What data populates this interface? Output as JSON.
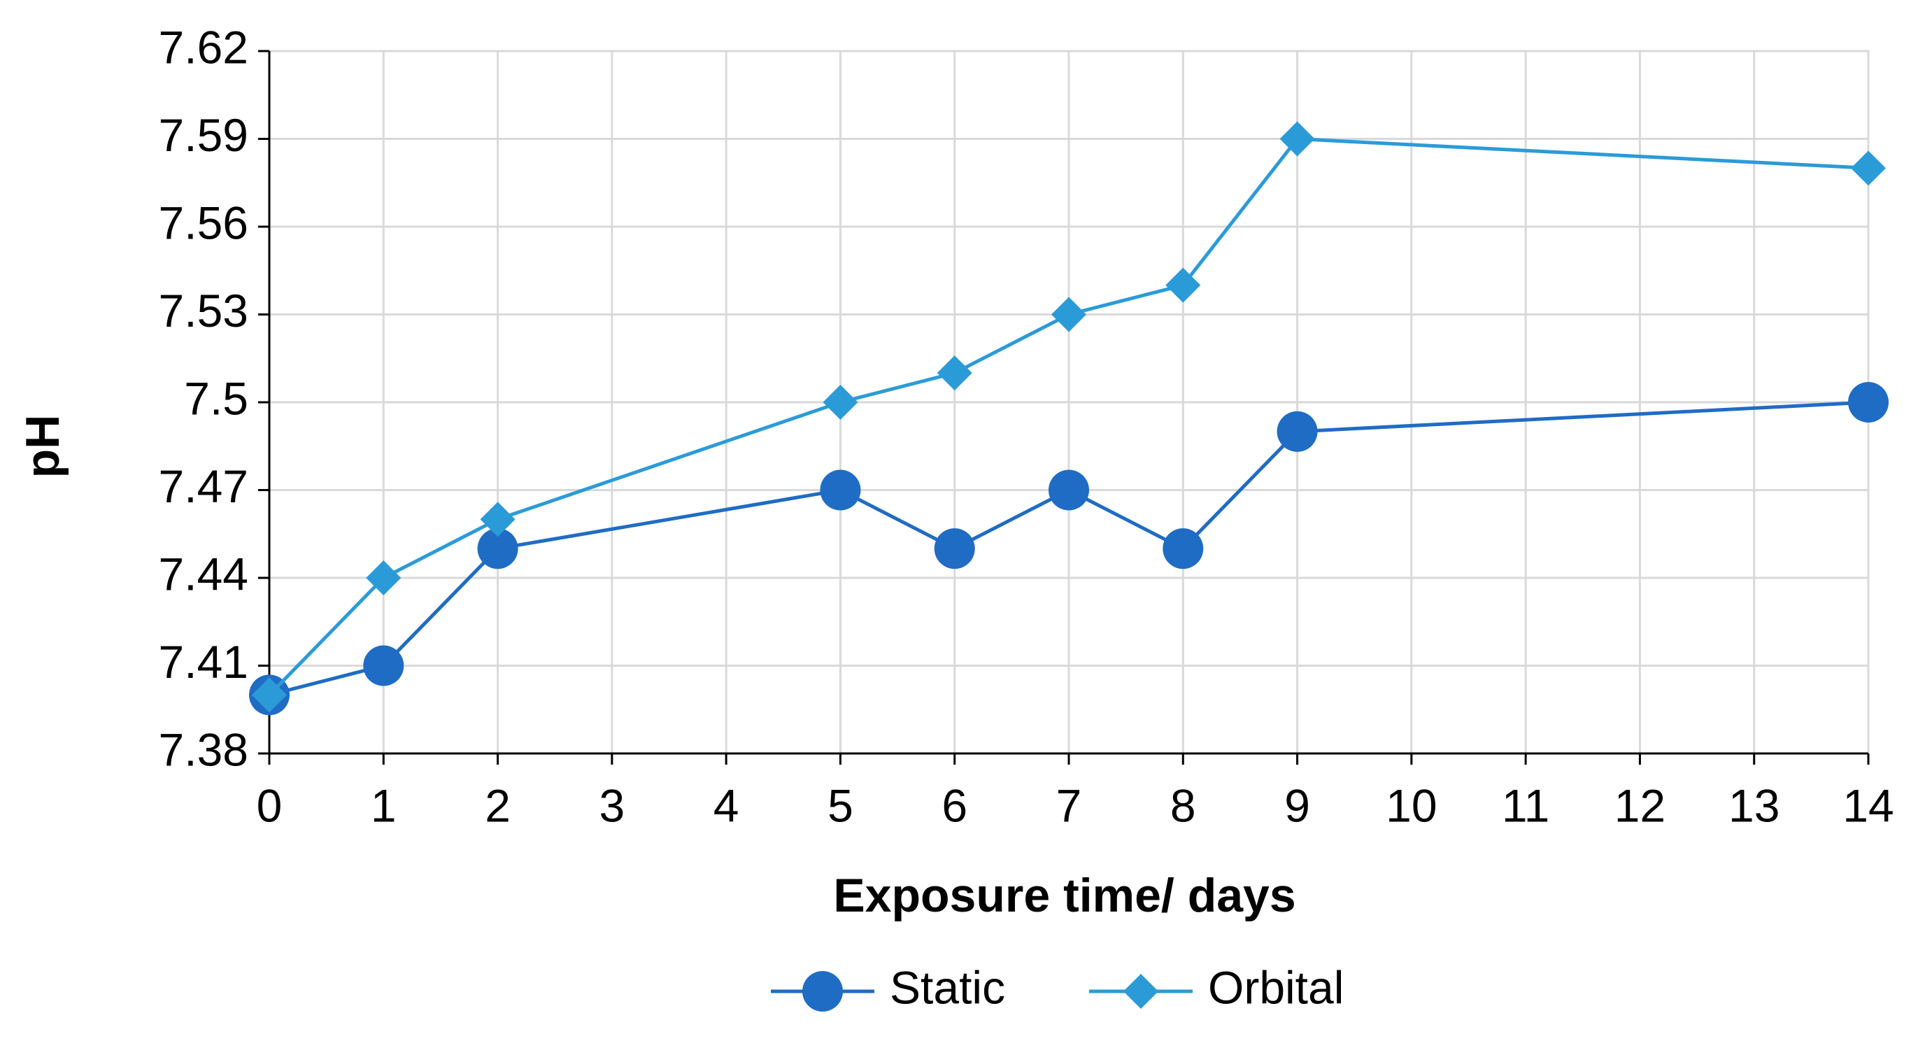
{
  "chart_data": {
    "type": "line",
    "x_label": "Exposure time/ days",
    "y_label": "pH",
    "xlim": [
      0,
      14
    ],
    "xticks": [
      0,
      1,
      2,
      3,
      4,
      5,
      6,
      7,
      8,
      9,
      10,
      11,
      12,
      13,
      14
    ],
    "ylim": [
      7.38,
      7.62
    ],
    "yticks": [
      7.38,
      7.41,
      7.44,
      7.47,
      7.5,
      7.53,
      7.56,
      7.59,
      7.62
    ],
    "grid": true,
    "legend": "bottom",
    "x": [
      0,
      1,
      2,
      5,
      6,
      7,
      8,
      9,
      14
    ],
    "series": [
      {
        "name": "Static",
        "color": "#1f6cc4",
        "marker": "circle",
        "values": [
          7.4,
          7.41,
          7.45,
          7.47,
          7.45,
          7.47,
          7.45,
          7.49,
          7.5
        ]
      },
      {
        "name": "Orbital",
        "color": "#2b9bd8",
        "marker": "diamond",
        "values": [
          7.4,
          7.44,
          7.46,
          7.5,
          7.51,
          7.53,
          7.54,
          7.59,
          7.58
        ]
      }
    ]
  }
}
